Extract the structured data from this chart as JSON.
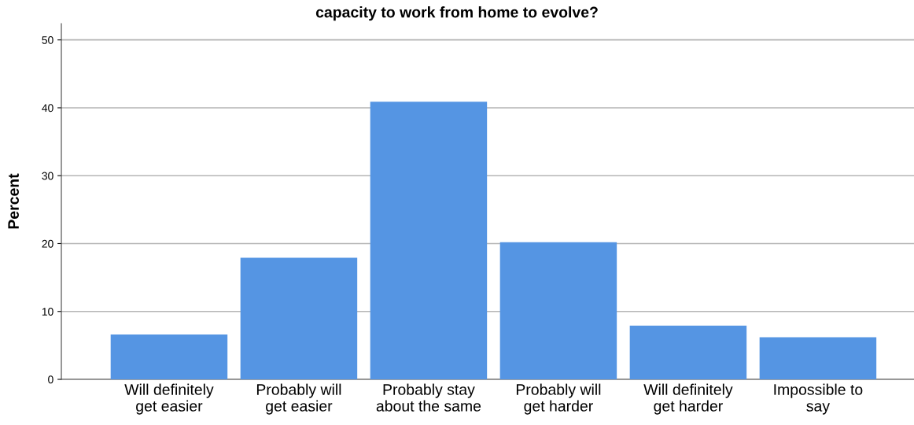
{
  "chart_data": {
    "type": "bar",
    "title": "capacity to work from home to evolve?",
    "ylabel": "Percent",
    "categories": [
      "Will definitely\nget easier",
      "Probably will\nget easier",
      "Probably stay\nabout the same",
      "Probably will\nget harder",
      "Will definitely\nget harder",
      "Impossible to\nsay"
    ],
    "values": [
      6.6,
      17.9,
      40.9,
      20.2,
      7.9,
      6.2
    ],
    "color": "#5595e3",
    "ylim": [
      0,
      52.4
    ],
    "yticks": [
      0,
      10,
      20,
      30,
      40,
      50
    ],
    "grid": "y"
  }
}
